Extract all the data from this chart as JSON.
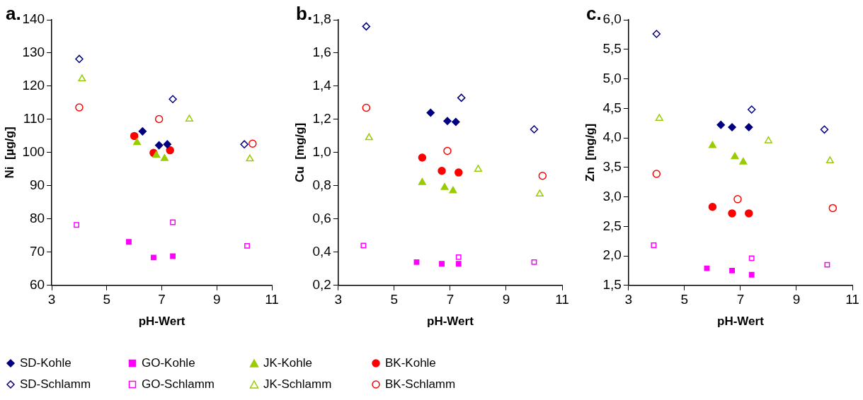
{
  "chart_data": [
    {
      "type": "scatter",
      "title": "a.",
      "xlabel": "pH-Wert",
      "ylabel": "Ni  [µg/g]",
      "xlim": [
        3,
        11
      ],
      "xticks": [
        3,
        5,
        7,
        9,
        11
      ],
      "ylim": [
        60,
        140
      ],
      "yticks": [
        60,
        70,
        80,
        90,
        100,
        110,
        120,
        130,
        140
      ],
      "grid": false,
      "legend": "bottom",
      "series": [
        {
          "name": "SD-Kohle",
          "color": "#000080",
          "marker": "diamond",
          "x": [
            6.3,
            6.9,
            7.2
          ],
          "values": [
            106.4,
            102.2,
            102.5
          ]
        },
        {
          "name": "GO-Kohle",
          "color": "#ff00ff",
          "marker": "square",
          "x": [
            5.8,
            6.7,
            7.4
          ],
          "values": [
            73.1,
            68.4,
            68.8
          ]
        },
        {
          "name": "JK-Kohle",
          "color": "#99cc00",
          "marker": "triangle",
          "x": [
            6.1,
            6.8,
            7.1
          ],
          "values": [
            103,
            99.2,
            98.2
          ]
        },
        {
          "name": "BK-Kohle",
          "color": "#ff0000",
          "marker": "circle",
          "x": [
            6.0,
            6.7,
            7.3
          ],
          "values": [
            105.0,
            99.9,
            100.7
          ]
        },
        {
          "name": "SD-Schlamm",
          "color": "#000080",
          "marker": "diamond",
          "x": [
            4.0,
            7.4,
            10.0
          ],
          "values": [
            128.2,
            116.1,
            102.5
          ]
        },
        {
          "name": "GO-Schlamm",
          "color": "#ff00ff",
          "marker": "square",
          "x": [
            3.9,
            7.4,
            10.1
          ],
          "values": [
            78.2,
            79.0,
            71.9
          ]
        },
        {
          "name": "JK-Schlamm",
          "color": "#99cc00",
          "marker": "triangle",
          "x": [
            4.1,
            8.0,
            10.2
          ],
          "values": [
            122.2,
            110.1,
            98.1
          ]
        },
        {
          "name": "BK-Schlamm",
          "color": "#ff0000",
          "marker": "circle",
          "x": [
            4.0,
            6.9,
            10.3
          ],
          "values": [
            113.6,
            110.1,
            102.7
          ]
        }
      ]
    },
    {
      "type": "scatter",
      "title": "b.",
      "xlabel": "pH-Wert",
      "ylabel": "Cu  [mg/g]",
      "xlim": [
        3,
        11
      ],
      "xticks": [
        3,
        5,
        7,
        9,
        11
      ],
      "ylim": [
        0.2,
        1.8
      ],
      "yticks": [
        {
          "value": 0.2,
          "label": "0,2"
        },
        {
          "value": 0.4,
          "label": "0,4"
        },
        {
          "value": 0.6,
          "label": "0,6"
        },
        {
          "value": 0.8,
          "label": "0,8"
        },
        {
          "value": 1.0,
          "label": "1,0"
        },
        {
          "value": 1.2,
          "label": "1,2"
        },
        {
          "value": 1.4,
          "label": "1,4"
        },
        {
          "value": 1.6,
          "label": "1,6"
        },
        {
          "value": 1.8,
          "label": "1,8"
        }
      ],
      "grid": false,
      "series": [
        {
          "color": "#000080",
          "marker": "diamond",
          "x": [
            6.3,
            6.9,
            7.2
          ],
          "values": [
            1.24,
            1.19,
            1.185
          ]
        },
        {
          "color": "#ff00ff",
          "marker": "square",
          "x": [
            5.8,
            6.7,
            7.3
          ],
          "values": [
            0.34,
            0.33,
            0.33
          ]
        },
        {
          "color": "#99cc00",
          "marker": "triangle",
          "x": [
            6.0,
            6.8,
            7.1
          ],
          "values": [
            0.82,
            0.79,
            0.77
          ]
        },
        {
          "color": "#ff0000",
          "marker": "circle",
          "x": [
            6.0,
            6.7,
            7.3
          ],
          "values": [
            0.97,
            0.89,
            0.88
          ]
        },
        {
          "color": "#000080",
          "marker": "diamond",
          "x": [
            4.0,
            7.4,
            10.0
          ],
          "values": [
            1.76,
            1.33,
            1.14
          ]
        },
        {
          "color": "#ff00ff",
          "marker": "square",
          "x": [
            3.9,
            7.3,
            10.0
          ],
          "values": [
            0.44,
            0.37,
            0.34
          ]
        },
        {
          "color": "#99cc00",
          "marker": "triangle",
          "x": [
            4.1,
            8.0,
            10.2
          ],
          "values": [
            1.09,
            0.9,
            0.75
          ]
        },
        {
          "color": "#ff0000",
          "marker": "circle",
          "x": [
            4.0,
            6.9,
            10.3
          ],
          "values": [
            1.27,
            1.01,
            0.86
          ]
        }
      ]
    },
    {
      "type": "scatter",
      "title": "c.",
      "xlabel": "pH-Wert",
      "ylabel": "Zn  [mg/g]",
      "xlim": [
        3,
        11
      ],
      "xticks": [
        3,
        5,
        7,
        9,
        11
      ],
      "ylim": [
        1.5,
        6.0
      ],
      "yticks": [
        {
          "value": 1.5,
          "label": "1,5"
        },
        {
          "value": 2.0,
          "label": "2,0"
        },
        {
          "value": 2.5,
          "label": "2,5"
        },
        {
          "value": 3.0,
          "label": "3,0"
        },
        {
          "value": 3.5,
          "label": "3,5"
        },
        {
          "value": 4.0,
          "label": "4,0"
        },
        {
          "value": 4.5,
          "label": "4,5"
        },
        {
          "value": 5.0,
          "label": "5,0"
        },
        {
          "value": 5.5,
          "label": "5,5"
        },
        {
          "value": 6.0,
          "label": "6,0"
        }
      ],
      "grid": false,
      "series": [
        {
          "color": "#000080",
          "marker": "diamond",
          "x": [
            6.3,
            6.7,
            7.3
          ],
          "values": [
            4.22,
            4.18,
            4.18
          ]
        },
        {
          "color": "#ff00ff",
          "marker": "square",
          "x": [
            5.8,
            6.7,
            7.4
          ],
          "values": [
            1.79,
            1.75,
            1.68
          ]
        },
        {
          "color": "#99cc00",
          "marker": "triangle",
          "x": [
            6.0,
            6.8,
            7.1
          ],
          "values": [
            3.87,
            3.68,
            3.59
          ]
        },
        {
          "color": "#ff0000",
          "marker": "circle",
          "x": [
            6.0,
            6.7,
            7.3
          ],
          "values": [
            2.83,
            2.72,
            2.72
          ]
        },
        {
          "color": "#000080",
          "marker": "diamond",
          "x": [
            4.0,
            7.4,
            10.0
          ],
          "values": [
            5.76,
            4.48,
            4.14
          ]
        },
        {
          "color": "#ff00ff",
          "marker": "square",
          "x": [
            3.9,
            7.4,
            10.1
          ],
          "values": [
            2.18,
            1.96,
            1.85
          ]
        },
        {
          "color": "#99cc00",
          "marker": "triangle",
          "x": [
            4.1,
            8.0,
            10.2
          ],
          "values": [
            4.33,
            3.95,
            3.61
          ]
        },
        {
          "color": "#ff0000",
          "marker": "circle",
          "x": [
            4.0,
            6.9,
            10.3
          ],
          "values": [
            3.39,
            2.96,
            2.81
          ]
        }
      ]
    }
  ]
}
